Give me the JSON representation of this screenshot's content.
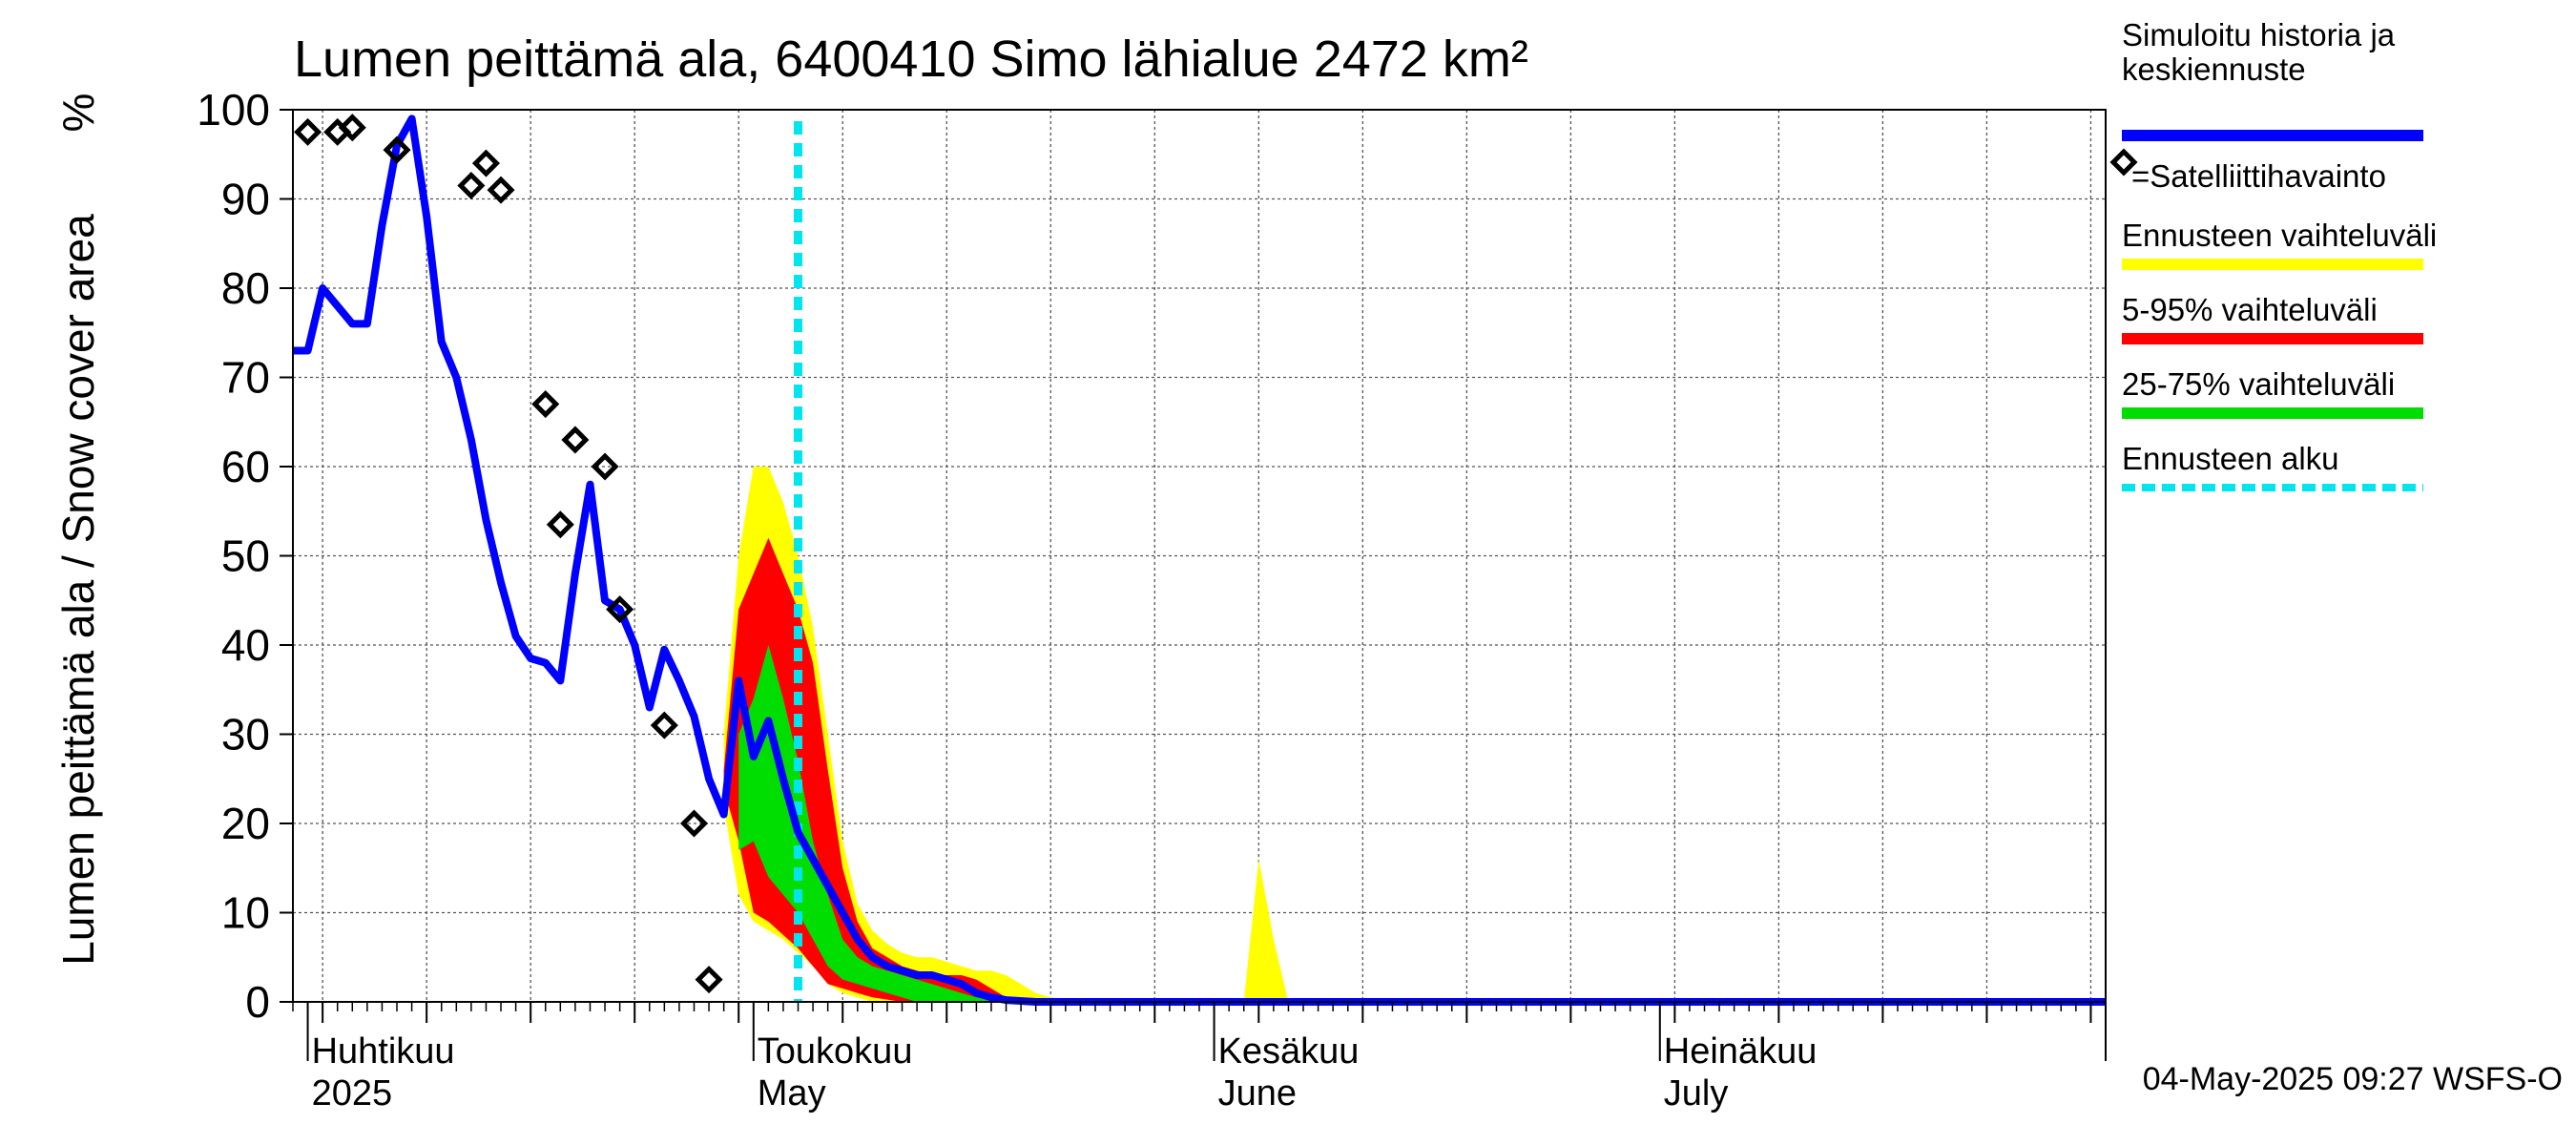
{
  "chart_data": {
    "type": "area",
    "title": "Lumen peittämä ala, 6400410 Simo lähialue 2472 km²",
    "ylabel": "Lumen peittämä ala / Snow cover area",
    "yunit": "%",
    "xlabel": "",
    "ylim": [
      0,
      100
    ],
    "yticks": [
      0,
      10,
      20,
      30,
      40,
      50,
      60,
      70,
      80,
      90,
      100
    ],
    "xlim": [
      "2025-03-31",
      "2025-07-31"
    ],
    "grid": true,
    "month_labels": [
      {
        "date": "2025-04-01",
        "fi": "Huhtikuu",
        "en": "2025"
      },
      {
        "date": "2025-05-01",
        "fi": "Toukokuu",
        "en": "May"
      },
      {
        "date": "2025-06-01",
        "fi": "Kesäkuu",
        "en": "June"
      },
      {
        "date": "2025-07-01",
        "fi": "Heinäkuu",
        "en": "July"
      }
    ],
    "forecast_start": "2025-05-04",
    "timestamp": "04-May-2025 09:27 WSFS-O",
    "legend": {
      "placement": "right",
      "entries": [
        {
          "key": "simulated",
          "label": "Simuloitu historia ja keskiennuste",
          "label_lines": [
            "Simuloitu historia ja",
            "keskiennuste"
          ],
          "color": "#0000ff"
        },
        {
          "key": "satellite",
          "label": "=Satelliittihavainto",
          "label_lines": [
            "=Satelliittihavainto"
          ],
          "color": "#000000"
        },
        {
          "key": "range_full",
          "label": "Ennusteen vaihteluväli",
          "label_lines": [
            "Ennusteen vaihteluväli"
          ],
          "color": "#ffff00"
        },
        {
          "key": "range_5_95",
          "label": "5-95% vaihteluväli",
          "label_lines": [
            "5-95% vaihteluväli"
          ],
          "color": "#ff0000"
        },
        {
          "key": "range_25_75",
          "label": "25-75% vaihteluväli",
          "label_lines": [
            "25-75% vaihteluväli"
          ],
          "color": "#00dd00"
        },
        {
          "key": "forecast_start",
          "label": "Ennusteen alku",
          "label_lines": [
            "Ennusteen alku"
          ],
          "color": "#00e5ee"
        }
      ]
    },
    "simulated": [
      [
        "2025-03-31",
        73
      ],
      [
        "2025-04-01",
        73
      ],
      [
        "2025-04-02",
        80
      ],
      [
        "2025-04-03",
        78
      ],
      [
        "2025-04-04",
        76
      ],
      [
        "2025-04-05",
        76
      ],
      [
        "2025-04-06",
        87
      ],
      [
        "2025-04-07",
        96
      ],
      [
        "2025-04-08",
        99
      ],
      [
        "2025-04-09",
        88
      ],
      [
        "2025-04-10",
        74
      ],
      [
        "2025-04-11",
        70
      ],
      [
        "2025-04-12",
        63
      ],
      [
        "2025-04-13",
        54
      ],
      [
        "2025-04-14",
        47
      ],
      [
        "2025-04-15",
        41
      ],
      [
        "2025-04-16",
        38.5
      ],
      [
        "2025-04-17",
        38
      ],
      [
        "2025-04-18",
        36
      ],
      [
        "2025-04-19",
        48
      ],
      [
        "2025-04-20",
        58
      ],
      [
        "2025-04-21",
        45
      ],
      [
        "2025-04-22",
        44
      ],
      [
        "2025-04-23",
        40
      ],
      [
        "2025-04-24",
        33
      ],
      [
        "2025-04-25",
        39.5
      ],
      [
        "2025-04-26",
        36
      ],
      [
        "2025-04-27",
        32
      ],
      [
        "2025-04-28",
        25
      ],
      [
        "2025-04-29",
        21
      ],
      [
        "2025-04-30",
        36
      ],
      [
        "2025-05-01",
        27.5
      ],
      [
        "2025-05-02",
        31.5
      ],
      [
        "2025-05-03",
        25
      ],
      [
        "2025-05-04",
        19
      ],
      [
        "2025-05-05",
        16
      ],
      [
        "2025-05-06",
        13
      ],
      [
        "2025-05-07",
        10
      ],
      [
        "2025-05-08",
        7
      ],
      [
        "2025-05-09",
        5
      ],
      [
        "2025-05-10",
        4
      ],
      [
        "2025-05-11",
        3.5
      ],
      [
        "2025-05-12",
        3
      ],
      [
        "2025-05-13",
        3
      ],
      [
        "2025-05-14",
        2.5
      ],
      [
        "2025-05-15",
        2
      ],
      [
        "2025-05-16",
        1
      ],
      [
        "2025-05-17",
        0.5
      ],
      [
        "2025-05-18",
        0.2
      ],
      [
        "2025-05-20",
        0
      ],
      [
        "2025-07-31",
        0
      ]
    ],
    "satellite": [
      [
        "2025-04-01",
        97.5
      ],
      [
        "2025-04-03",
        97.5
      ],
      [
        "2025-04-04",
        98
      ],
      [
        "2025-04-07",
        95.5
      ],
      [
        "2025-04-12",
        91.5
      ],
      [
        "2025-04-13",
        94
      ],
      [
        "2025-04-14",
        91
      ],
      [
        "2025-04-17",
        67
      ],
      [
        "2025-04-18",
        53.5
      ],
      [
        "2025-04-19",
        63
      ],
      [
        "2025-04-21",
        60
      ],
      [
        "2025-04-22",
        44
      ],
      [
        "2025-04-25",
        31
      ],
      [
        "2025-04-27",
        20
      ],
      [
        "2025-04-28",
        2.5
      ]
    ],
    "range_full": {
      "upper": [
        [
          "2025-04-29",
          30
        ],
        [
          "2025-04-30",
          50
        ],
        [
          "2025-05-01",
          60
        ],
        [
          "2025-05-02",
          60
        ],
        [
          "2025-05-03",
          56
        ],
        [
          "2025-05-04",
          50
        ],
        [
          "2025-05-05",
          42
        ],
        [
          "2025-05-06",
          30
        ],
        [
          "2025-05-07",
          18
        ],
        [
          "2025-05-08",
          11
        ],
        [
          "2025-05-09",
          8
        ],
        [
          "2025-05-10",
          6.5
        ],
        [
          "2025-05-11",
          5.5
        ],
        [
          "2025-05-12",
          5
        ],
        [
          "2025-05-13",
          5
        ],
        [
          "2025-05-14",
          4.5
        ],
        [
          "2025-05-15",
          4
        ],
        [
          "2025-05-16",
          3.5
        ],
        [
          "2025-05-17",
          3.5
        ],
        [
          "2025-05-18",
          3
        ],
        [
          "2025-05-19",
          2
        ],
        [
          "2025-05-20",
          1
        ],
        [
          "2025-05-21",
          0.5
        ],
        [
          "2025-05-23",
          0.2
        ],
        [
          "2025-05-26",
          0
        ],
        [
          "2025-06-03",
          0
        ],
        [
          "2025-06-04",
          16
        ],
        [
          "2025-06-05",
          7
        ],
        [
          "2025-06-06",
          0
        ],
        [
          "2025-07-31",
          0
        ]
      ],
      "lower": [
        [
          "2025-04-29",
          22
        ],
        [
          "2025-04-30",
          12
        ],
        [
          "2025-05-01",
          9
        ],
        [
          "2025-05-02",
          8
        ],
        [
          "2025-05-03",
          7
        ],
        [
          "2025-05-04",
          5.5
        ],
        [
          "2025-05-05",
          4
        ],
        [
          "2025-05-06",
          2
        ],
        [
          "2025-05-07",
          1
        ],
        [
          "2025-05-08",
          0.5
        ],
        [
          "2025-05-09",
          0
        ],
        [
          "2025-07-31",
          0
        ]
      ]
    },
    "range_5_95": {
      "upper": [
        [
          "2025-04-29",
          26
        ],
        [
          "2025-04-30",
          44
        ],
        [
          "2025-05-01",
          48
        ],
        [
          "2025-05-02",
          52
        ],
        [
          "2025-05-03",
          48
        ],
        [
          "2025-05-04",
          44
        ],
        [
          "2025-05-05",
          38
        ],
        [
          "2025-05-06",
          26
        ],
        [
          "2025-05-07",
          15
        ],
        [
          "2025-05-08",
          9
        ],
        [
          "2025-05-09",
          6
        ],
        [
          "2025-05-10",
          5
        ],
        [
          "2025-05-11",
          4
        ],
        [
          "2025-05-12",
          3.5
        ],
        [
          "2025-05-13",
          3
        ],
        [
          "2025-05-14",
          3
        ],
        [
          "2025-05-15",
          3
        ],
        [
          "2025-05-16",
          2.5
        ],
        [
          "2025-05-17",
          1.5
        ],
        [
          "2025-05-18",
          0.5
        ],
        [
          "2025-05-20",
          0
        ],
        [
          "2025-07-31",
          0
        ]
      ],
      "lower": [
        [
          "2025-04-29",
          24
        ],
        [
          "2025-04-30",
          18
        ],
        [
          "2025-05-01",
          10
        ],
        [
          "2025-05-02",
          9
        ],
        [
          "2025-05-03",
          7.5
        ],
        [
          "2025-05-04",
          6
        ],
        [
          "2025-05-05",
          4
        ],
        [
          "2025-05-06",
          2
        ],
        [
          "2025-05-07",
          1.5
        ],
        [
          "2025-05-08",
          1
        ],
        [
          "2025-05-09",
          0.5
        ],
        [
          "2025-05-11",
          0
        ],
        [
          "2025-07-31",
          0
        ]
      ]
    },
    "range_25_75": {
      "upper": [
        [
          "2025-04-30",
          30
        ],
        [
          "2025-05-01",
          34
        ],
        [
          "2025-05-02",
          40
        ],
        [
          "2025-05-03",
          34
        ],
        [
          "2025-05-04",
          27
        ],
        [
          "2025-05-05",
          18
        ],
        [
          "2025-05-06",
          12
        ],
        [
          "2025-05-07",
          7
        ],
        [
          "2025-05-08",
          5
        ],
        [
          "2025-05-09",
          4
        ],
        [
          "2025-05-10",
          3.5
        ],
        [
          "2025-05-11",
          3
        ],
        [
          "2025-05-12",
          2.5
        ],
        [
          "2025-05-13",
          2
        ],
        [
          "2025-05-14",
          1.5
        ],
        [
          "2025-05-15",
          1
        ],
        [
          "2025-05-16",
          0.5
        ],
        [
          "2025-05-18",
          0
        ],
        [
          "2025-07-31",
          0
        ]
      ],
      "lower": [
        [
          "2025-04-30",
          17
        ],
        [
          "2025-05-01",
          18
        ],
        [
          "2025-05-02",
          14
        ],
        [
          "2025-05-03",
          12
        ],
        [
          "2025-05-04",
          10
        ],
        [
          "2025-05-05",
          7
        ],
        [
          "2025-05-06",
          4
        ],
        [
          "2025-05-07",
          2.5
        ],
        [
          "2025-05-08",
          2
        ],
        [
          "2025-05-09",
          1.5
        ],
        [
          "2025-05-10",
          1
        ],
        [
          "2025-05-11",
          0.5
        ],
        [
          "2025-05-12",
          0
        ],
        [
          "2025-07-31",
          0
        ]
      ]
    }
  }
}
